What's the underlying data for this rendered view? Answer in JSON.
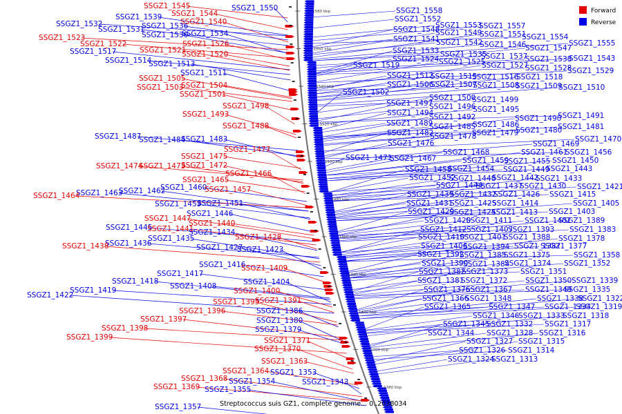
{
  "caption": "Streptococcus suis GZ1, complete genome... 0..2038034",
  "legend": [
    {
      "label": "Forward",
      "color": "#e60000"
    },
    {
      "label": "Reverse",
      "color": "#0000e6"
    }
  ],
  "colors": {
    "forward": "#e60000",
    "reverse": "#0000e6",
    "backbone": "#888888"
  },
  "ticks": [
    "1580 kbp",
    "1560 kbp",
    "1540 kbp",
    "1520 kbp",
    "1500 kbp",
    "1480 kbp",
    "1460 kbp",
    "1440 kbp",
    "1420 kbp",
    "1400 kbp",
    "1380 kbp"
  ],
  "left_labels": [
    {
      "text": "SSGZ1_1545",
      "strand": "forward"
    },
    {
      "text": "SSGZ1_1550",
      "strand": "reverse"
    },
    {
      "text": "SSGZ1_1544",
      "strand": "forward"
    },
    {
      "text": "SSGZ1_1539",
      "strand": "reverse"
    },
    {
      "text": "SSGZ1_1540",
      "strand": "forward"
    },
    {
      "text": "SSGZ1_1532",
      "strand": "reverse"
    },
    {
      "text": "SSGZ1_1536",
      "strand": "reverse"
    },
    {
      "text": "SSGZ1_1531",
      "strand": "reverse"
    },
    {
      "text": "SSGZ1_1530",
      "strand": "reverse"
    },
    {
      "text": "SSGZ1_1534",
      "strand": "reverse"
    },
    {
      "text": "SSGZ1_1523",
      "strand": "forward"
    },
    {
      "text": "SSGZ1_1522",
      "strand": "forward"
    },
    {
      "text": "SSGZ1_1526",
      "strand": "forward"
    },
    {
      "text": "SSGZ1_1517",
      "strand": "reverse"
    },
    {
      "text": "SSGZ1_1521",
      "strand": "forward"
    },
    {
      "text": "SSGZ1_1520",
      "strand": "forward"
    },
    {
      "text": "SSGZ1_1514",
      "strand": "reverse"
    },
    {
      "text": "SSGZ1_1513",
      "strand": "reverse"
    },
    {
      "text": "SSGZ1_1511",
      "strand": "reverse"
    },
    {
      "text": "SSGZ1_1505",
      "strand": "forward"
    },
    {
      "text": "SSGZ1_1504",
      "strand": "forward"
    },
    {
      "text": "SSGZ1_1503",
      "strand": "forward"
    },
    {
      "text": "SSGZ1_1501",
      "strand": "forward"
    },
    {
      "text": "SSGZ1_1498",
      "strand": "forward"
    },
    {
      "text": "SSGZ1_1493",
      "strand": "forward"
    },
    {
      "text": "SSGZ1_1488",
      "strand": "forward"
    },
    {
      "text": "SSGZ1_1487",
      "strand": "reverse"
    },
    {
      "text": "SSGZ1_1484",
      "strand": "reverse"
    },
    {
      "text": "SSGZ1_1483",
      "strand": "reverse"
    },
    {
      "text": "SSGZ1_1477",
      "strand": "forward"
    },
    {
      "text": "SSGZ1_1475",
      "strand": "forward"
    },
    {
      "text": "SSGZ1_1474",
      "strand": "forward"
    },
    {
      "text": "SSGZ1_1473",
      "strand": "forward"
    },
    {
      "text": "SSGZ1_1472",
      "strand": "forward"
    },
    {
      "text": "SSGZ1_1466",
      "strand": "forward"
    },
    {
      "text": "SSGZ1_1465",
      "strand": "forward"
    },
    {
      "text": "SSGZ1_1460",
      "strand": "reverse"
    },
    {
      "text": "SSGZ1_1457",
      "strand": "forward"
    },
    {
      "text": "SSGZ1_1463",
      "strand": "reverse"
    },
    {
      "text": "SSGZ1_1462",
      "strand": "reverse"
    },
    {
      "text": "SSGZ1_1464",
      "strand": "forward"
    },
    {
      "text": "SSGZ1_1453",
      "strand": "reverse"
    },
    {
      "text": "SSGZ1_1451",
      "strand": "reverse"
    },
    {
      "text": "SSGZ1_1446",
      "strand": "reverse"
    },
    {
      "text": "SSGZ1_1447",
      "strand": "forward"
    },
    {
      "text": "SSGZ1_1440",
      "strand": "forward"
    },
    {
      "text": "SSGZ1_1445",
      "strand": "reverse"
    },
    {
      "text": "SSGZ1_1441",
      "strand": "forward"
    },
    {
      "text": "SSGZ1_1434",
      "strand": "reverse"
    },
    {
      "text": "SSGZ1_1435",
      "strand": "reverse"
    },
    {
      "text": "SSGZ1_1428",
      "strand": "forward"
    },
    {
      "text": "SSGZ1_1436",
      "strand": "reverse"
    },
    {
      "text": "SSGZ1_1438",
      "strand": "forward"
    },
    {
      "text": "SSGZ1_1427",
      "strand": "reverse"
    },
    {
      "text": "SSGZ1_1423",
      "strand": "reverse"
    },
    {
      "text": "SSGZ1_1416",
      "strand": "reverse"
    },
    {
      "text": "SSGZ1_1409",
      "strand": "forward"
    },
    {
      "text": "SSGZ1_1417",
      "strand": "reverse"
    },
    {
      "text": "SSGZ1_1418",
      "strand": "reverse"
    },
    {
      "text": "SSGZ1_1404",
      "strand": "reverse"
    },
    {
      "text": "SSGZ1_1408",
      "strand": "reverse"
    },
    {
      "text": "SSGZ1_1419",
      "strand": "reverse"
    },
    {
      "text": "SSGZ1_1400",
      "strand": "forward"
    },
    {
      "text": "SSGZ1_1422",
      "strand": "reverse"
    },
    {
      "text": "SSGZ1_1395",
      "strand": "forward"
    },
    {
      "text": "SSGZ1_1391",
      "strand": "forward"
    },
    {
      "text": "SSGZ1_1396",
      "strand": "forward"
    },
    {
      "text": "SSGZ1_1386",
      "strand": "reverse"
    },
    {
      "text": "SSGZ1_1397",
      "strand": "forward"
    },
    {
      "text": "SSGZ1_1380",
      "strand": "reverse"
    },
    {
      "text": "SSGZ1_1398",
      "strand": "forward"
    },
    {
      "text": "SSGZ1_1379",
      "strand": "reverse"
    },
    {
      "text": "SSGZ1_1399",
      "strand": "forward"
    },
    {
      "text": "SSGZ1_1371",
      "strand": "forward"
    },
    {
      "text": "SSGZ1_1370",
      "strand": "forward"
    },
    {
      "text": "SSGZ1_1363",
      "strand": "forward"
    },
    {
      "text": "SSGZ1_1364",
      "strand": "forward"
    },
    {
      "text": "SSGZ1_1353",
      "strand": "reverse"
    },
    {
      "text": "SSGZ1_1368",
      "strand": "forward"
    },
    {
      "text": "SSGZ1_1354",
      "strand": "reverse"
    },
    {
      "text": "SSGZ1_1343",
      "strand": "reverse"
    },
    {
      "text": "SSGZ1_1369",
      "strand": "forward"
    },
    {
      "text": "SSGZ1_1355",
      "strand": "reverse"
    },
    {
      "text": "SSGZ1_1357",
      "strand": "reverse"
    }
  ],
  "right_labels": [
    "SSGZ1_1558",
    "SSGZ1_1552",
    "SSGZ1_1553",
    "SSGZ1_1557",
    "SSGZ1_1548",
    "SSGZ1_1549",
    "SSGZ1_1551",
    "SSGZ1_1554",
    "SSGZ1_1541",
    "SSGZ1_1542",
    "SSGZ1_1546",
    "SSGZ1_1555",
    "SSGZ1_1547",
    "SSGZ1_1533",
    "SSGZ1_1535",
    "SSGZ1_1537",
    "SSGZ1_1538",
    "SSGZ1_1543",
    "SSGZ1_1524",
    "SSGZ1_1525",
    "SSGZ1_1527",
    "SSGZ1_1528",
    "SSGZ1_1519",
    "SSGZ1_1529",
    "SSGZ1_1512",
    "SSGZ1_1515",
    "SSGZ1_1516",
    "SSGZ1_1518",
    "SSGZ1_1506",
    "SSGZ1_1507",
    "SSGZ1_1508",
    "SSGZ1_1509",
    "SSGZ1_1510",
    "SSGZ1_1502",
    "SSGZ1_1500",
    "SSGZ1_1499",
    "SSGZ1_1497",
    "SSGZ1_1496",
    "SSGZ1_1495",
    "SSGZ1_1494",
    "SSGZ1_1492",
    "SSGZ1_1490",
    "SSGZ1_1491",
    "SSGZ1_1489",
    "SSGZ1_1485",
    "SSGZ1_1486",
    "SSGZ1_1481",
    "SSGZ1_1482",
    "SSGZ1_1479",
    "SSGZ1_1480",
    "SSGZ1_1478",
    "SSGZ1_1470",
    "SSGZ1_1476",
    "SSGZ1_1469",
    "SSGZ1_1468",
    "SSGZ1_1461",
    "SSGZ1_1456",
    "SSGZ1_1471",
    "SSGZ1_1467",
    "SSGZ1_1459",
    "SSGZ1_1455",
    "SSGZ1_1450",
    "SSGZ1_1458",
    "SSGZ1_1454",
    "SSGZ1_1449",
    "SSGZ1_1443",
    "SSGZ1_1452",
    "SSGZ1_1448",
    "SSGZ1_1442",
    "SSGZ1_1433",
    "SSGZ1_1444",
    "SSGZ1_1437",
    "SSGZ1_1430",
    "SSGZ1_1421",
    "SSGZ1_1439",
    "SSGZ1_1432",
    "SSGZ1_1426",
    "SSGZ1_1415",
    "SSGZ1_1431",
    "SSGZ1_1425",
    "SSGZ1_1414",
    "SSGZ1_1405",
    "SSGZ1_1429",
    "SSGZ1_1424",
    "SSGZ1_1413",
    "SSGZ1_1403",
    "SSGZ1_1420",
    "SSGZ1_1411",
    "SSGZ1_1402",
    "SSGZ1_1389",
    "SSGZ1_1412",
    "SSGZ1_1407",
    "SSGZ1_1393",
    "SSGZ1_1383",
    "SSGZ1_1410",
    "SSGZ1_1401",
    "SSGZ1_1388",
    "SSGZ1_1378",
    "SSGZ1_1406",
    "SSGZ1_1394",
    "SSGZ1_1387",
    "SSGZ1_1377",
    "SSGZ1_1392",
    "SSGZ1_1385",
    "SSGZ1_1375",
    "SSGZ1_1358",
    "SSGZ1_1390",
    "SSGZ1_1384",
    "SSGZ1_1374",
    "SSGZ1_1352",
    "SSGZ1_1382",
    "SSGZ1_1373",
    "SSGZ1_1351",
    "SSGZ1_1381",
    "SSGZ1_1372",
    "SSGZ1_1350",
    "SSGZ1_1339",
    "SSGZ1_1376",
    "SSGZ1_1367",
    "SSGZ1_1349",
    "SSGZ1_1335",
    "SSGZ1_1366",
    "SSGZ1_1348",
    "SSGZ1_1338",
    "SSGZ1_1322",
    "SSGZ1_1365",
    "SSGZ1_1347",
    "SSGZ1_1334",
    "SSGZ1_1319",
    "SSGZ1_1346",
    "SSGZ1_1333",
    "SSGZ1_1318",
    "SSGZ1_1345",
    "SSGZ1_1332",
    "SSGZ1_1317",
    "SSGZ1_1344",
    "SSGZ1_1328",
    "SSGZ1_1316",
    "SSGZ1_1327",
    "SSGZ1_1315",
    "SSGZ1_1326",
    "SSGZ1_1314",
    "SSGZ1_1324",
    "SSGZ1_1313"
  ]
}
